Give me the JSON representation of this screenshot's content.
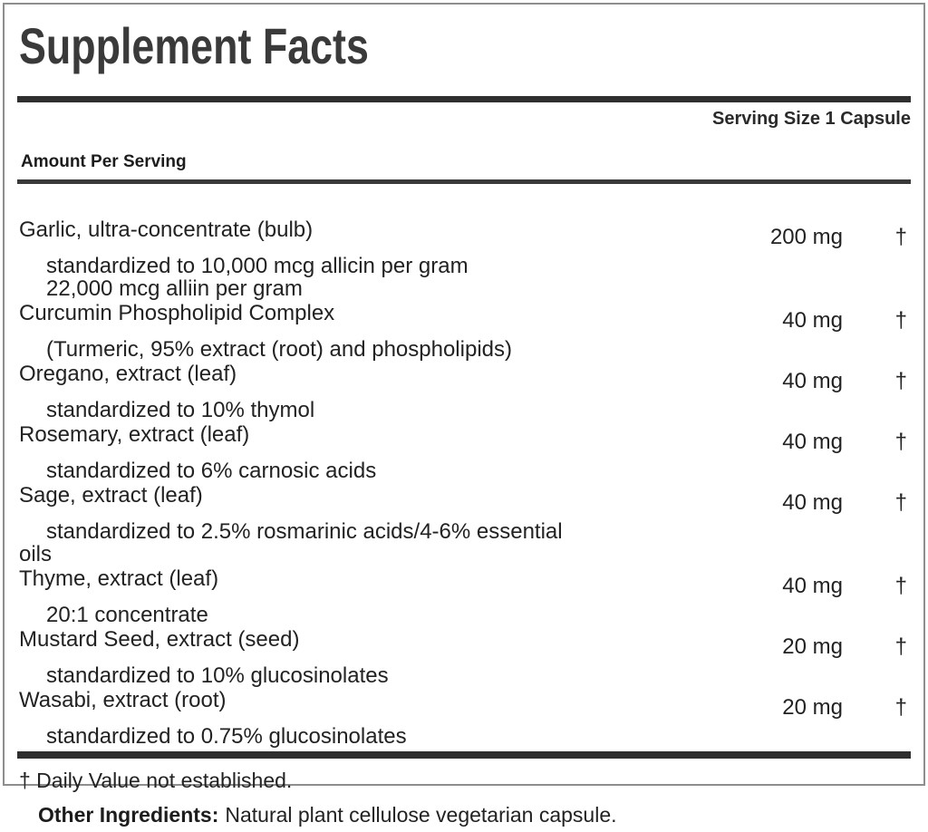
{
  "panel": {
    "title": "Supplement Facts",
    "serving_size": "Serving Size 1 Capsule",
    "amount_per_serving": "Amount Per Serving",
    "rows": [
      {
        "name": "Garlic, ultra-concentrate (bulb)",
        "amount": "200 mg",
        "daily_value": "†",
        "details": [
          {
            "text": "standardized to 10,000 mcg allicin per gram",
            "indent": true
          },
          {
            "text": "22,000 mcg alliin per gram",
            "indent": true
          }
        ]
      },
      {
        "name": "Curcumin Phospholipid Complex",
        "amount": "40 mg",
        "daily_value": "†",
        "details": [
          {
            "text": "(Turmeric, 95% extract (root) and phospholipids)",
            "indent": true
          }
        ]
      },
      {
        "name": "Oregano, extract (leaf)",
        "amount": "40 mg",
        "daily_value": "†",
        "details": [
          {
            "text": "standardized to 10% thymol",
            "indent": true
          }
        ]
      },
      {
        "name": "Rosemary, extract (leaf)",
        "amount": "40 mg",
        "daily_value": "†",
        "details": [
          {
            "text": "standardized to 6% carnosic acids",
            "indent": true
          }
        ]
      },
      {
        "name": "Sage, extract (leaf)",
        "amount": "40 mg",
        "daily_value": "†",
        "details": [
          {
            "text": "standardized to 2.5% rosmarinic acids/4-6% essential",
            "indent": true
          },
          {
            "text": "oils",
            "indent": false
          }
        ]
      },
      {
        "name": "Thyme, extract (leaf)",
        "amount": "40 mg",
        "daily_value": "†",
        "details": [
          {
            "text": "20:1 concentrate",
            "indent": true
          }
        ]
      },
      {
        "name": "Mustard Seed, extract (seed)",
        "amount": "20 mg",
        "daily_value": "†",
        "details": [
          {
            "text": "standardized to 10% glucosinolates",
            "indent": true
          }
        ]
      },
      {
        "name": "Wasabi, extract (root)",
        "amount": "20 mg",
        "daily_value": "†",
        "details": [
          {
            "text": "standardized to 0.75% glucosinolates",
            "indent": true
          }
        ]
      }
    ],
    "footnote": "† Daily Value not established."
  },
  "other_ingredients": {
    "label": "Other Ingredients:",
    "text": "Natural plant cellulose vegetarian capsule."
  },
  "colors": {
    "background": "#ffffff",
    "title_text": "#3a3a3a",
    "body_text": "#222222",
    "bar": "#2f2f2f",
    "panel_border": "#8e8e8e"
  }
}
